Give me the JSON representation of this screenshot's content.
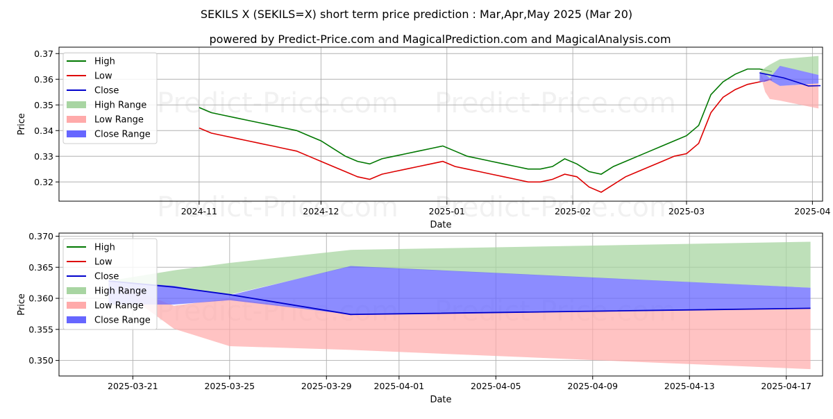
{
  "title": "SEKILS X (SEKILS=X) short term price prediction : Mar,Apr,May 2025 (Mar 20)",
  "subtitle": "powered by Predict-Price.com and MagicalPrediction.com and MagicalAnalysis.com",
  "watermark": "Predict-Price.com",
  "colors": {
    "high": "#007700",
    "low": "#dd0000",
    "close": "#0000cc",
    "high_range": "#a8d5a2",
    "low_range": "#ffaaaa",
    "close_range": "#6666ff",
    "grid": "#b0b0b0"
  },
  "chart_data": [
    {
      "type": "line",
      "xlabel": "Date",
      "ylabel": "Price",
      "ylim": [
        0.3125,
        0.3725
      ],
      "xlim": [
        -34.5,
        153.5
      ],
      "x_ticks": [
        {
          "x": 0,
          "label": "2024-11"
        },
        {
          "x": 30,
          "label": "2024-12"
        },
        {
          "x": 61,
          "label": "2025-01"
        },
        {
          "x": 92,
          "label": "2025-02"
        },
        {
          "x": 120,
          "label": "2025-03"
        },
        {
          "x": 151,
          "label": "2025-04"
        }
      ],
      "y_ticks": [
        0.32,
        0.33,
        0.34,
        0.35,
        0.36,
        0.37
      ],
      "legend": [
        "High",
        "Low",
        "High Range",
        "Low Range",
        "Close",
        "Close Range"
      ],
      "series": [
        {
          "name": "High",
          "x": [
            0,
            3,
            6,
            9,
            12,
            15,
            18,
            21,
            24,
            27,
            30,
            33,
            36,
            39,
            42,
            45,
            48,
            51,
            54,
            57,
            60,
            63,
            66,
            69,
            72,
            75,
            78,
            81,
            84,
            87,
            90,
            93,
            96,
            99,
            102,
            105,
            108,
            111,
            114,
            117,
            120,
            123,
            126,
            129,
            132,
            135,
            138,
            141
          ],
          "values": [
            0.349,
            0.347,
            0.346,
            0.345,
            0.344,
            0.343,
            0.342,
            0.341,
            0.34,
            0.338,
            0.336,
            0.333,
            0.33,
            0.328,
            0.327,
            0.329,
            0.33,
            0.331,
            0.332,
            0.333,
            0.334,
            0.332,
            0.33,
            0.329,
            0.328,
            0.327,
            0.326,
            0.325,
            0.325,
            0.326,
            0.329,
            0.327,
            0.324,
            0.323,
            0.326,
            0.328,
            0.33,
            0.332,
            0.334,
            0.336,
            0.338,
            0.342,
            0.354,
            0.359,
            0.362,
            0.364,
            0.364,
            0.363
          ]
        },
        {
          "name": "Low",
          "x": [
            0,
            3,
            6,
            9,
            12,
            15,
            18,
            21,
            24,
            27,
            30,
            33,
            36,
            39,
            42,
            45,
            48,
            51,
            54,
            57,
            60,
            63,
            66,
            69,
            72,
            75,
            78,
            81,
            84,
            87,
            90,
            93,
            96,
            99,
            102,
            105,
            108,
            111,
            114,
            117,
            120,
            123,
            126,
            129,
            132,
            135,
            138,
            141
          ],
          "values": [
            0.341,
            0.339,
            0.338,
            0.337,
            0.336,
            0.335,
            0.334,
            0.333,
            0.332,
            0.33,
            0.328,
            0.326,
            0.324,
            0.322,
            0.321,
            0.323,
            0.324,
            0.325,
            0.326,
            0.327,
            0.328,
            0.326,
            0.325,
            0.324,
            0.323,
            0.322,
            0.321,
            0.32,
            0.32,
            0.321,
            0.323,
            0.322,
            0.318,
            0.316,
            0.319,
            0.322,
            0.324,
            0.326,
            0.328,
            0.33,
            0.331,
            0.335,
            0.347,
            0.353,
            0.356,
            0.358,
            0.359,
            0.36
          ]
        },
        {
          "name": "Close",
          "x": [
            138,
            141,
            144,
            147,
            150,
            153
          ],
          "values": [
            0.3625,
            0.3615,
            0.3605,
            0.359,
            0.3574,
            0.3575
          ]
        }
      ]
    },
    {
      "type": "area",
      "xlabel": "Date",
      "ylabel": "Price",
      "ylim": [
        0.3475,
        0.3705
      ],
      "xlim": [
        -2.05,
        29.5
      ],
      "x_ticks": [
        {
          "x": 1,
          "label": "2025-03-21"
        },
        {
          "x": 5,
          "label": "2025-03-25"
        },
        {
          "x": 9,
          "label": "2025-03-29"
        },
        {
          "x": 12,
          "label": "2025-04-01"
        },
        {
          "x": 16,
          "label": "2025-04-05"
        },
        {
          "x": 20,
          "label": "2025-04-09"
        },
        {
          "x": 24,
          "label": "2025-04-13"
        },
        {
          "x": 28,
          "label": "2025-04-17"
        }
      ],
      "y_ticks": [
        0.35,
        0.355,
        0.36,
        0.365,
        0.37
      ],
      "legend": [
        "High",
        "Low",
        "High Range",
        "Low Range",
        "Close",
        "Close Range"
      ],
      "x": [
        0,
        2.7,
        5,
        10,
        29
      ],
      "series": [
        {
          "name": "Close",
          "values": [
            0.3628,
            0.3618,
            0.3606,
            0.3574,
            0.3584
          ]
        },
        {
          "name": "High Range",
          "upper": [
            0.3628,
            0.3645,
            0.3657,
            0.3678,
            0.3691
          ],
          "lower": [
            0.3628,
            0.3618,
            0.3606,
            0.3651,
            0.3617
          ]
        },
        {
          "name": "Low Range",
          "upper": [
            0.3628,
            0.3588,
            0.36,
            0.3574,
            0.3584
          ],
          "lower": [
            0.3628,
            0.3551,
            0.3523,
            0.3517,
            0.3486
          ]
        },
        {
          "name": "Close Range",
          "upper": [
            0.3628,
            0.362,
            0.3605,
            0.3652,
            0.3617
          ],
          "lower": [
            0.359,
            0.359,
            0.3597,
            0.3574,
            0.3584
          ]
        }
      ]
    }
  ]
}
